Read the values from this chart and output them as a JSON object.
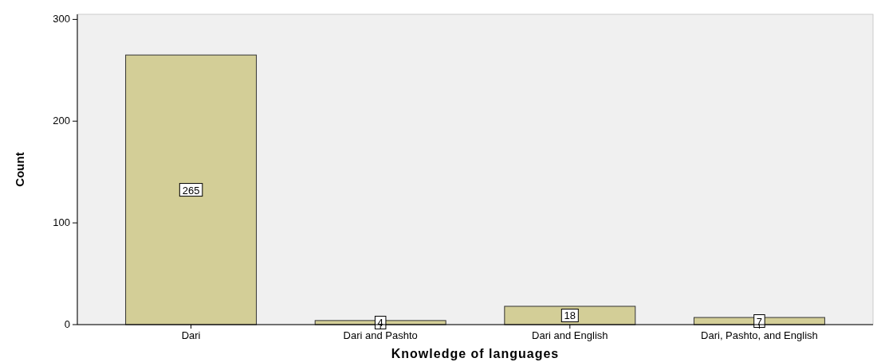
{
  "chart_data": {
    "type": "bar",
    "xlabel": "Knowledge of languages",
    "ylabel": "Count",
    "categories": [
      "Dari",
      "Dari and Pashto",
      "Dari and English",
      "Dari, Pashto, and English"
    ],
    "values": [
      265,
      4,
      18,
      7
    ],
    "color": "#d3ce97",
    "ylim": [
      0,
      305
    ],
    "yticks": [
      0,
      100,
      200,
      300
    ],
    "grid": false,
    "data_labels": true
  }
}
